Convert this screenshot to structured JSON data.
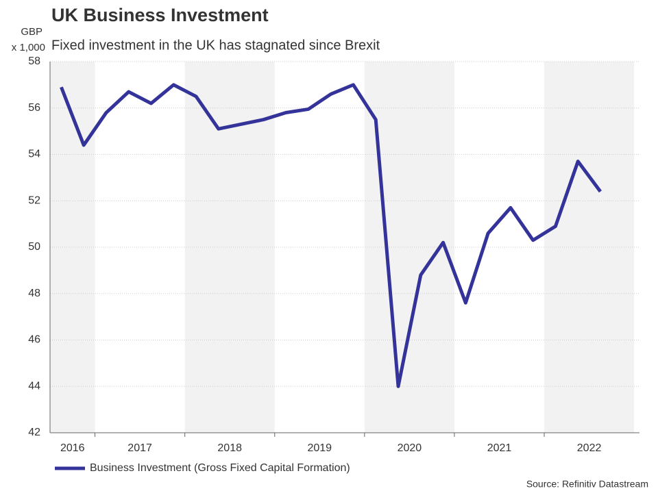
{
  "chart_data": {
    "type": "line",
    "title": "UK Business Investment",
    "subtitle": "Fixed investment in the UK has stagnated since Brexit",
    "y_label": [
      "GBP",
      "x 1,000"
    ],
    "source": "Source: Refinitiv Datastream",
    "x": [
      2016.625,
      2016.875,
      2017.125,
      2017.375,
      2017.625,
      2017.875,
      2018.125,
      2018.375,
      2018.625,
      2018.875,
      2019.125,
      2019.375,
      2019.625,
      2019.875,
      2020.125,
      2020.375,
      2020.625,
      2020.875,
      2021.125,
      2021.375,
      2021.625,
      2021.875,
      2022.125,
      2022.375,
      2022.625
    ],
    "series": [
      {
        "name": "Business Investment (Gross Fixed Capital Formation)",
        "color": "#333399",
        "values": [
          56.9,
          54.4,
          55.8,
          56.7,
          56.2,
          57.0,
          56.5,
          55.1,
          55.3,
          55.5,
          55.8,
          55.95,
          56.6,
          57.0,
          55.5,
          44.0,
          48.8,
          50.2,
          47.6,
          50.6,
          51.7,
          50.3,
          50.9,
          53.7,
          52.4
        ]
      }
    ],
    "xlim": [
      2016.5,
      2023.06
    ],
    "xticks": [
      2016,
      2017,
      2018,
      2019,
      2020,
      2021,
      2022
    ],
    "ylim": [
      42,
      58
    ],
    "yticks": [
      42,
      44,
      46,
      48,
      50,
      52,
      54,
      56,
      58
    ],
    "grid": true,
    "legend": "bottom-left"
  }
}
